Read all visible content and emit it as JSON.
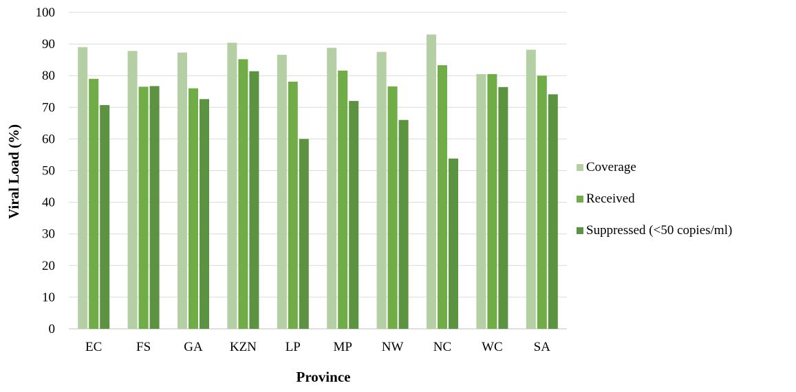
{
  "chart_data": {
    "type": "bar",
    "title": "",
    "xlabel": "Province",
    "ylabel": "Viral Load (%)",
    "ylim": [
      0,
      100
    ],
    "yticks": [
      0,
      10,
      20,
      30,
      40,
      50,
      60,
      70,
      80,
      90,
      100
    ],
    "grid": true,
    "legend_position": "right",
    "categories": [
      "EC",
      "FS",
      "GA",
      "KZN",
      "LP",
      "MP",
      "NW",
      "NC",
      "WC",
      "SA"
    ],
    "series": [
      {
        "name": "Coverage",
        "color": "#b3cfa3",
        "values": [
          89.0,
          87.8,
          87.3,
          90.4,
          86.6,
          88.8,
          87.5,
          93.0,
          80.5,
          88.2
        ]
      },
      {
        "name": "Received",
        "color": "#70ad47",
        "values": [
          79.0,
          76.5,
          76.0,
          85.2,
          78.1,
          81.6,
          76.6,
          83.3,
          80.5,
          80.0
        ]
      },
      {
        "name": "Suppressed (<50 copies/ml)",
        "color": "#5b9340",
        "values": [
          70.7,
          76.7,
          72.6,
          81.4,
          60.0,
          72.0,
          66.0,
          53.8,
          76.4,
          74.1
        ]
      }
    ]
  }
}
